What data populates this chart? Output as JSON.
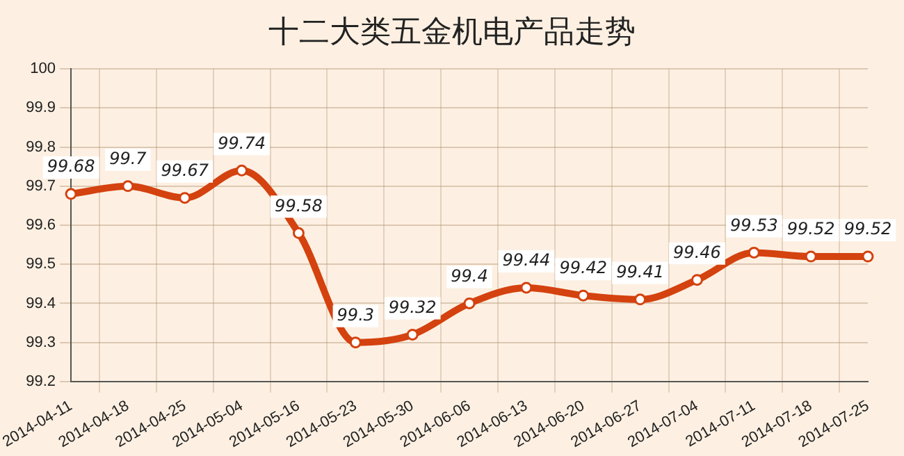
{
  "chart_data": {
    "type": "line",
    "title": "十二大类五金机电产品走势",
    "categories": [
      "2014-04-11",
      "2014-04-18",
      "2014-04-25",
      "2014-05-04",
      "2014-05-16",
      "2014-05-23",
      "2014-05-30",
      "2014-06-06",
      "2014-06-13",
      "2014-06-20",
      "2014-06-27",
      "2014-07-04",
      "2014-07-11",
      "2014-07-18",
      "2014-07-25"
    ],
    "series": [
      {
        "color": "#d4420f",
        "values": [
          99.68,
          99.7,
          99.67,
          99.74,
          99.58,
          99.3,
          99.32,
          99.4,
          99.44,
          99.42,
          99.41,
          99.46,
          99.53,
          99.52,
          99.52
        ]
      }
    ],
    "ylim": [
      99.2,
      100
    ],
    "yticks": [
      99.2,
      99.3,
      99.4,
      99.5,
      99.6,
      99.7,
      99.8,
      99.9,
      100
    ],
    "grid": true,
    "marker": "circle",
    "data_labels": true,
    "legend": false
  }
}
